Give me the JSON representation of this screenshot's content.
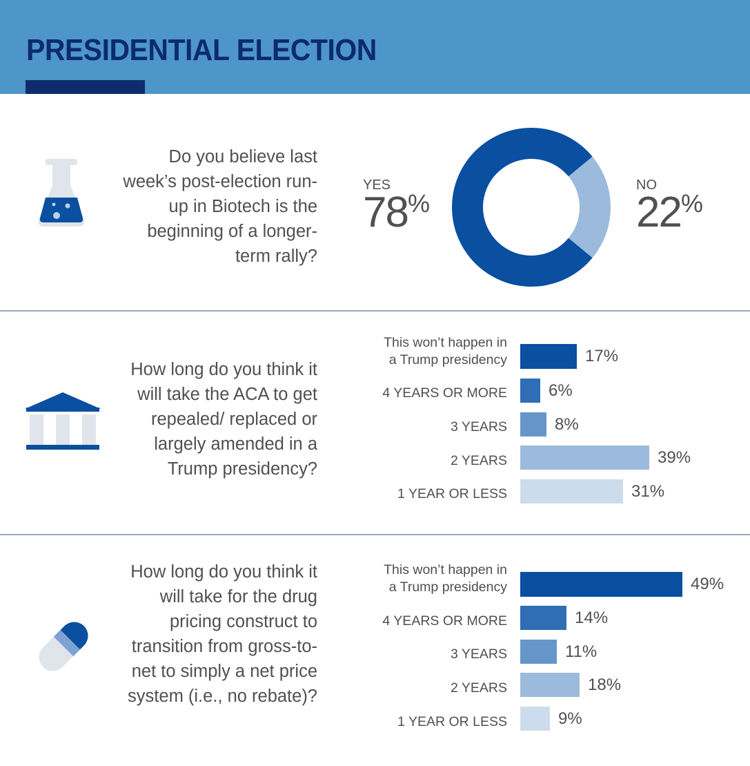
{
  "header": {
    "title": "PRESIDENTIAL ELECTION"
  },
  "colors": {
    "header_bg": "#4e95c9",
    "title": "#0b2b6e",
    "dark_blue": "#0a4fa0",
    "light_blue": "#9bbadc"
  },
  "icons": {
    "q1": "flask-icon",
    "q2": "government-building-icon",
    "q3": "pill-capsule-icon"
  },
  "chart_data": [
    {
      "type": "pie",
      "question": "Do you believe last week’s post-election run-up in Biotech is the beginning of a longer-term rally?",
      "categories": [
        "YES",
        "NO"
      ],
      "values": [
        78,
        22
      ],
      "value_labels": [
        "78",
        "22"
      ],
      "unit": "%",
      "colors": [
        "#0a4fa0",
        "#9bbadc"
      ],
      "donut": true
    },
    {
      "type": "bar",
      "orientation": "horizontal",
      "question": "How long do you think it will take the ACA to get repealed/ replaced or largely amended in a Trump presidency?",
      "categories": [
        "This won’t happen in a Trump presidency",
        "4 YEARS OR MORE",
        "3 YEARS",
        "2 YEARS",
        "1 YEAR OR LESS"
      ],
      "values": [
        17,
        6,
        8,
        39,
        31
      ],
      "value_labels": [
        "17%",
        "6%",
        "8%",
        "39%",
        "31%"
      ],
      "colors": [
        "#0a4fa0",
        "#2f6eb5",
        "#6696c9",
        "#9bbadc",
        "#cddcec"
      ]
    },
    {
      "type": "bar",
      "orientation": "horizontal",
      "question": "How long do you think it will take for the drug pricing construct to transition from gross-to-net to simply a net price system (i.e., no rebate)?",
      "categories": [
        "This won’t happen in a Trump presidency",
        "4 YEARS OR MORE",
        "3 YEARS",
        "2 YEARS",
        "1 YEAR OR LESS"
      ],
      "values": [
        49,
        14,
        11,
        18,
        9
      ],
      "value_labels": [
        "49%",
        "14%",
        "11%",
        "18%",
        "9%"
      ],
      "colors": [
        "#0a4fa0",
        "#2f6eb5",
        "#6696c9",
        "#9bbadc",
        "#cddcec"
      ]
    }
  ]
}
